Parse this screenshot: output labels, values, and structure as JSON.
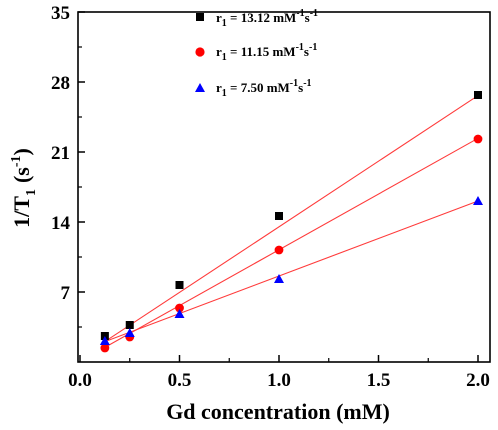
{
  "chart_data": {
    "type": "scatter",
    "xlabel": "Gd concentration (mM)",
    "ylabel": "1/T",
    "ylabel_sub": "1",
    "ylabel_unit": "(s",
    "ylabel_unit_sup": "-1",
    "ylabel_close": ")",
    "xlim": [
      0.0,
      2.0
    ],
    "ylim": [
      0,
      35
    ],
    "xticks": [
      0.0,
      0.5,
      1.0,
      1.5,
      2.0
    ],
    "xtick_labels": [
      "0.0",
      "0.5",
      "1.0",
      "1.5",
      "2.0"
    ],
    "yticks": [
      7,
      14,
      21,
      28,
      35
    ],
    "ytick_labels": [
      "7",
      "14",
      "21",
      "28",
      "35"
    ],
    "grid": false,
    "legend_position": "top-left",
    "fit_line_color": "#ff3b3b",
    "series": [
      {
        "name": "r1 = 13.12 mM-1s-1",
        "legend": {
          "r": "r",
          "r_sub": "1",
          "eq": " = 13.12 mM",
          "sup1": "-1",
          "s": "s",
          "sup2": "-1"
        },
        "marker": "square",
        "color": "#000000",
        "x": [
          0.125,
          0.25,
          0.5,
          1.0,
          2.0
        ],
        "y": [
          2.6,
          3.7,
          7.7,
          14.6,
          26.7
        ],
        "fit": {
          "slope": 13.12,
          "intercept": 0.4
        }
      },
      {
        "name": "r1 = 11.15 mM-1s-1",
        "legend": {
          "r": "r",
          "r_sub": "1",
          "eq": " = 11.15 mM",
          "sup1": "-1",
          "s": "s",
          "sup2": "-1"
        },
        "marker": "circle",
        "color": "#ff0000",
        "x": [
          0.125,
          0.25,
          0.5,
          1.0,
          2.0
        ],
        "y": [
          1.4,
          2.5,
          5.4,
          11.2,
          22.3
        ],
        "fit": {
          "slope": 11.15,
          "intercept": 0.07
        }
      },
      {
        "name": "r1 = 7.50 mM-1s-1",
        "legend": {
          "r": "r",
          "r_sub": "1",
          "eq": " = 7.50 mM",
          "sup1": "-1",
          "s": "s",
          "sup2": "-1"
        },
        "marker": "triangle",
        "color": "#0000ff",
        "x": [
          0.125,
          0.25,
          0.5,
          1.0,
          2.0
        ],
        "y": [
          2.1,
          2.9,
          4.8,
          8.3,
          16.1
        ],
        "fit": {
          "slope": 7.5,
          "intercept": 1.1
        }
      }
    ]
  }
}
